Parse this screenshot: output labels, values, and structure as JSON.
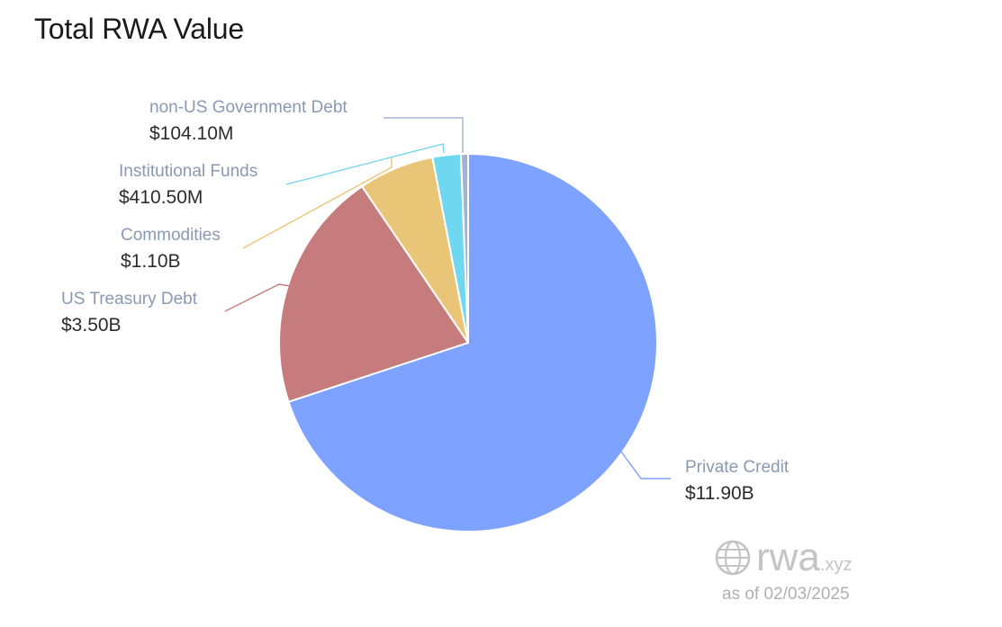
{
  "chart_data": {
    "type": "pie",
    "title": "Total RWA Value",
    "slices": [
      {
        "name": "Private Credit",
        "value": 11.9,
        "display": "$11.90B",
        "color": "#7ea2ff"
      },
      {
        "name": "US Treasury Debt",
        "value": 3.5,
        "display": "$3.50B",
        "color": "#c67b7d"
      },
      {
        "name": "Commodities",
        "value": 1.1,
        "display": "$1.10B",
        "color": "#e9c677"
      },
      {
        "name": "Institutional Funds",
        "value": 0.4105,
        "display": "$410.50M",
        "color": "#6fd7ef"
      },
      {
        "name": "non-US Government Debt",
        "value": 0.1041,
        "display": "$104.10M",
        "color": "#a3b3cf"
      }
    ],
    "label_color": "#8a99b3",
    "value_color": "#2c2c2c"
  },
  "watermark": {
    "brand": "rwa",
    "tld": ".xyz",
    "as_of": "as of 02/03/2025"
  }
}
